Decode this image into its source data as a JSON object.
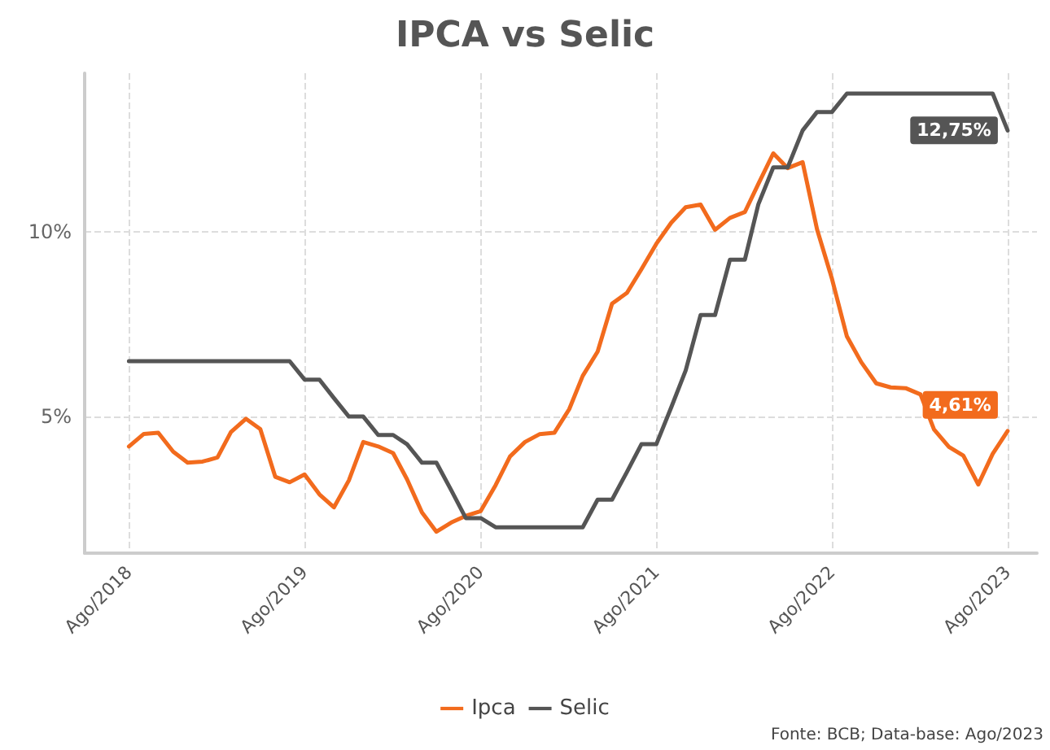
{
  "chart_data": {
    "type": "line",
    "title": "IPCA vs Selic",
    "x": [
      "2018-08",
      "2018-09",
      "2018-10",
      "2018-11",
      "2018-12",
      "2019-01",
      "2019-02",
      "2019-03",
      "2019-04",
      "2019-05",
      "2019-06",
      "2019-07",
      "2019-08",
      "2019-09",
      "2019-10",
      "2019-11",
      "2019-12",
      "2020-01",
      "2020-02",
      "2020-03",
      "2020-04",
      "2020-05",
      "2020-06",
      "2020-07",
      "2020-08",
      "2020-09",
      "2020-10",
      "2020-11",
      "2020-12",
      "2021-01",
      "2021-02",
      "2021-03",
      "2021-04",
      "2021-05",
      "2021-06",
      "2021-07",
      "2021-08",
      "2021-09",
      "2021-10",
      "2021-11",
      "2021-12",
      "2022-01",
      "2022-02",
      "2022-03",
      "2022-04",
      "2022-05",
      "2022-06",
      "2022-07",
      "2022-08",
      "2022-09",
      "2022-10",
      "2022-11",
      "2022-12",
      "2023-01",
      "2023-02",
      "2023-03",
      "2023-04",
      "2023-05",
      "2023-06",
      "2023-07",
      "2023-08"
    ],
    "series": [
      {
        "name": "Ipca",
        "color": "#f26b1d",
        "values": [
          4.19,
          4.53,
          4.56,
          4.05,
          3.75,
          3.78,
          3.89,
          4.58,
          4.94,
          4.66,
          3.37,
          3.22,
          3.43,
          2.89,
          2.54,
          3.27,
          4.31,
          4.19,
          4.01,
          3.3,
          2.4,
          1.88,
          2.13,
          2.31,
          2.44,
          3.14,
          3.92,
          4.31,
          4.52,
          4.56,
          5.2,
          6.1,
          6.76,
          8.06,
          8.35,
          8.99,
          9.68,
          10.25,
          10.67,
          10.74,
          10.06,
          10.38,
          10.54,
          11.3,
          12.13,
          11.73,
          11.89,
          10.07,
          8.73,
          7.17,
          6.47,
          5.9,
          5.79,
          5.77,
          5.6,
          4.65,
          4.18,
          3.94,
          3.16,
          3.99,
          4.61
        ]
      },
      {
        "name": "Selic",
        "color": "#555555",
        "values": [
          6.5,
          6.5,
          6.5,
          6.5,
          6.5,
          6.5,
          6.5,
          6.5,
          6.5,
          6.5,
          6.5,
          6.5,
          6.0,
          6.0,
          5.5,
          5.0,
          5.0,
          4.5,
          4.5,
          4.25,
          3.75,
          3.75,
          3.0,
          2.25,
          2.25,
          2.0,
          2.0,
          2.0,
          2.0,
          2.0,
          2.0,
          2.0,
          2.75,
          2.75,
          3.5,
          4.25,
          4.25,
          5.25,
          6.25,
          7.75,
          7.75,
          9.25,
          9.25,
          10.75,
          11.75,
          11.75,
          12.75,
          13.25,
          13.25,
          13.75,
          13.75,
          13.75,
          13.75,
          13.75,
          13.75,
          13.75,
          13.75,
          13.75,
          13.75,
          13.75,
          12.75
        ]
      }
    ],
    "xlim": [
      "2018-05",
      "2023-10"
    ],
    "xticks": [
      {
        "value": "2018-08",
        "label": "Ago/2018"
      },
      {
        "value": "2019-08",
        "label": "Ago/2019"
      },
      {
        "value": "2020-08",
        "label": "Ago/2020"
      },
      {
        "value": "2021-08",
        "label": "Ago/2021"
      },
      {
        "value": "2022-08",
        "label": "Ago/2022"
      },
      {
        "value": "2023-08",
        "label": "Ago/2023"
      }
    ],
    "ylim": [
      1.3,
      14.3
    ],
    "yticks": [
      {
        "value": 5,
        "label": "5%"
      },
      {
        "value": 10,
        "label": "10%"
      }
    ],
    "grid": true,
    "legend": "bottom",
    "line_style": "solid",
    "marker": "none",
    "annotations": [
      {
        "text": "12,75%",
        "x": "2023-08",
        "y": 12.75
      },
      {
        "text": "4,61%",
        "x": "2023-08",
        "y": 4.61
      },
      "Fonte: BCB; Data-base: Ago/2023"
    ]
  }
}
